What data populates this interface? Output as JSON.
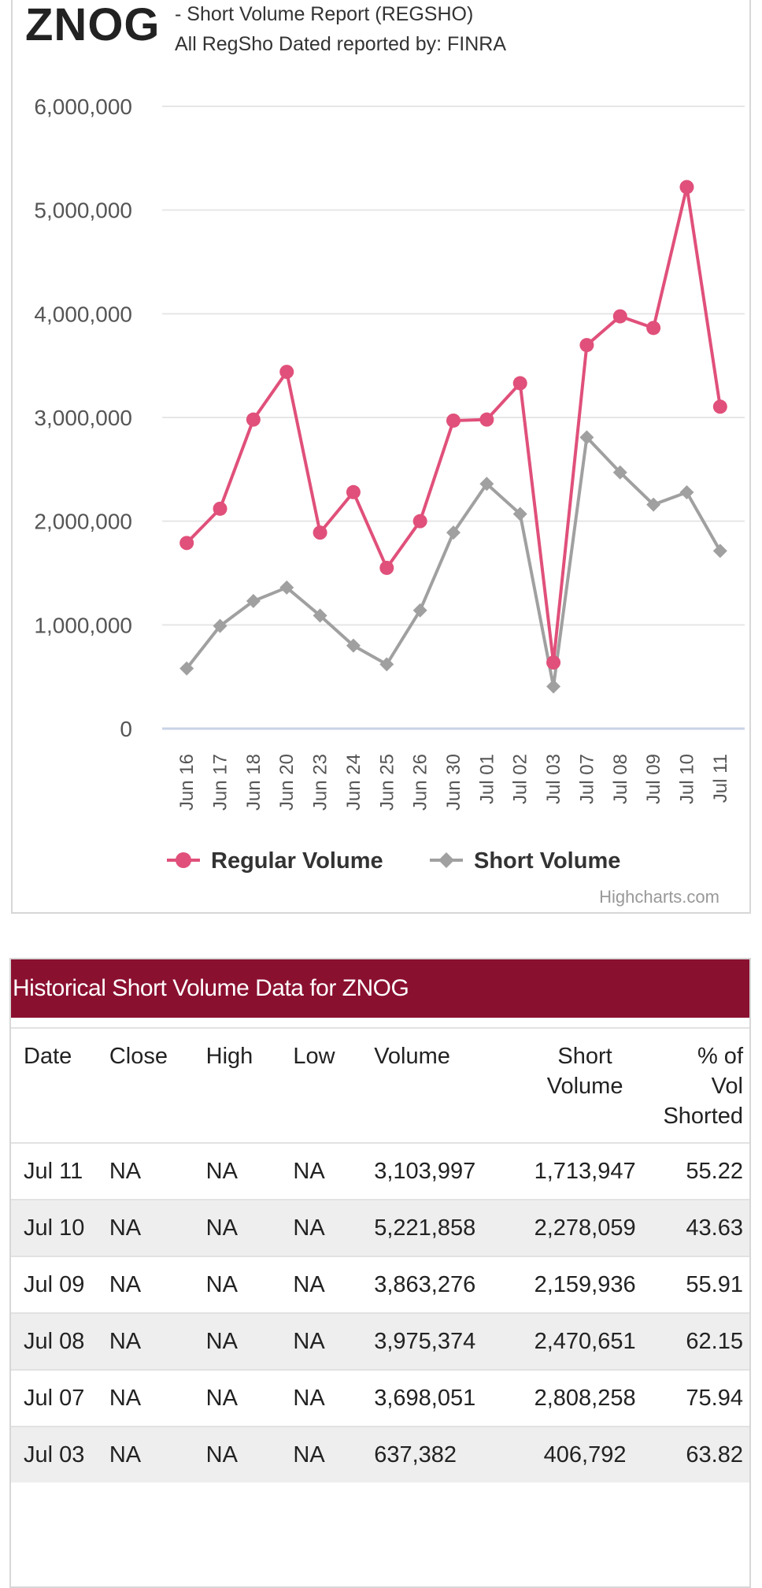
{
  "header": {
    "ticker": "ZNOG",
    "subtitle_line1": "- Short Volume Report  (REGSHO)",
    "subtitle_line2": "All RegSho Dated reported by: FINRA"
  },
  "chart_data": {
    "type": "line",
    "categories": [
      "Jun 16",
      "Jun 17",
      "Jun 18",
      "Jun 20",
      "Jun 23",
      "Jun 24",
      "Jun 25",
      "Jun 26",
      "Jun 30",
      "Jul 01",
      "Jul 02",
      "Jul 03",
      "Jul 07",
      "Jul 08",
      "Jul 09",
      "Jul 10",
      "Jul 11"
    ],
    "series": [
      {
        "name": "Regular Volume",
        "color": "#e0507a",
        "marker": "circle",
        "values": [
          1790000,
          2120000,
          2980000,
          3440000,
          1890000,
          2280000,
          1550000,
          2000000,
          2970000,
          2980000,
          3330000,
          637382,
          3698051,
          3975374,
          3863276,
          5221858,
          3103997
        ]
      },
      {
        "name": "Short Volume",
        "color": "#a0a0a0",
        "marker": "diamond",
        "values": [
          580000,
          990000,
          1230000,
          1360000,
          1090000,
          800000,
          620000,
          1140000,
          1890000,
          2360000,
          2070000,
          406792,
          2808258,
          2470651,
          2159936,
          2278059,
          1713947
        ]
      }
    ],
    "yticks": [
      "0",
      "1,000,000",
      "2,000,000",
      "3,000,000",
      "4,000,000",
      "5,000,000",
      "6,000,000"
    ],
    "ylim": [
      0,
      6000000
    ],
    "grid": true,
    "legend_position": "bottom"
  },
  "credit": "Highcharts.com",
  "table": {
    "title": "Historical Short Volume Data for ZNOG",
    "headers": [
      "Date",
      "Close",
      "High",
      "Low",
      "Volume",
      "Short Volume",
      "% of Vol Shorted"
    ],
    "rows": [
      [
        "Jul 11",
        "NA",
        "NA",
        "NA",
        "3,103,997",
        "1,713,947",
        "55.22"
      ],
      [
        "Jul 10",
        "NA",
        "NA",
        "NA",
        "5,221,858",
        "2,278,059",
        "43.63"
      ],
      [
        "Jul 09",
        "NA",
        "NA",
        "NA",
        "3,863,276",
        "2,159,936",
        "55.91"
      ],
      [
        "Jul 08",
        "NA",
        "NA",
        "NA",
        "3,975,374",
        "2,470,651",
        "62.15"
      ],
      [
        "Jul 07",
        "NA",
        "NA",
        "NA",
        "3,698,051",
        "2,808,258",
        "75.94"
      ],
      [
        "Jul 03",
        "NA",
        "NA",
        "NA",
        "637,382",
        "406,792",
        "63.82"
      ]
    ]
  }
}
